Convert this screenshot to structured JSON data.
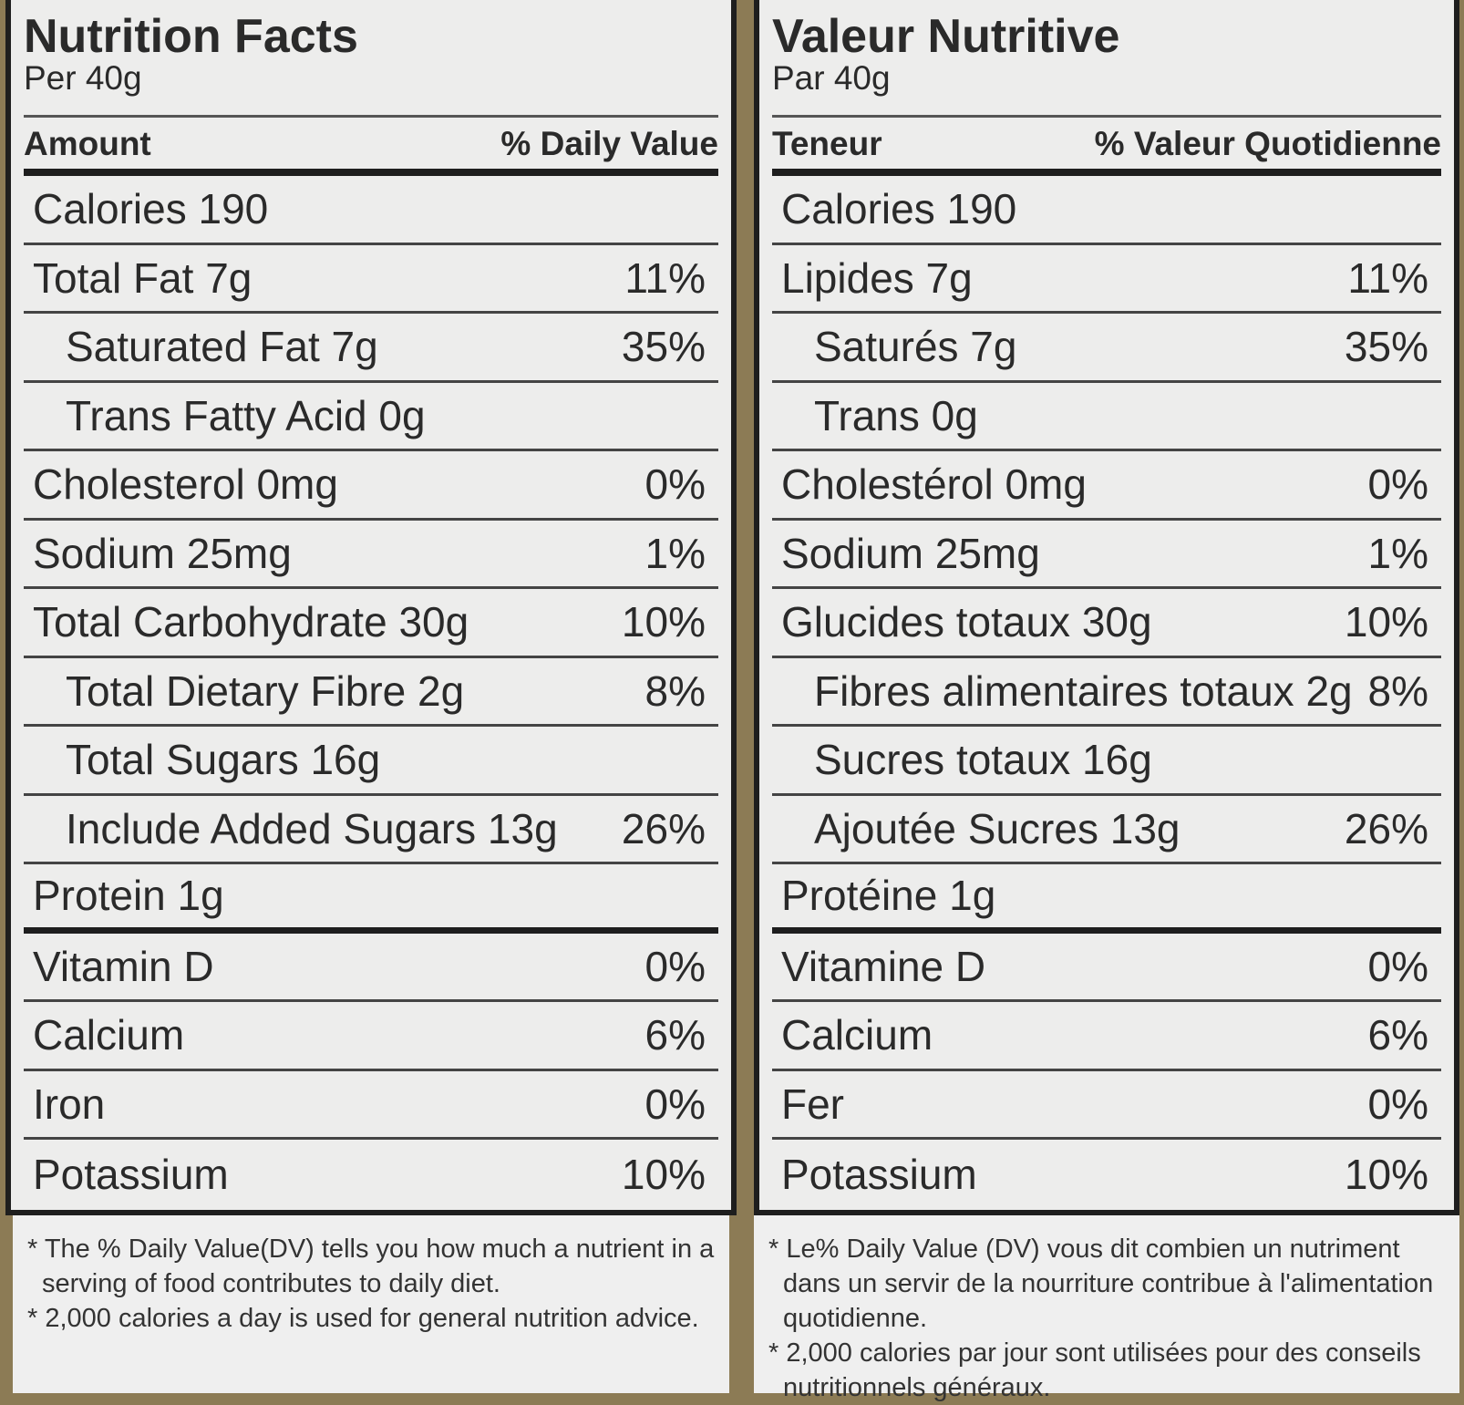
{
  "panels": [
    {
      "title": "Nutrition Facts",
      "serving": "Per 40g",
      "amount_header": "Amount",
      "dv_header": "% Daily Value",
      "rows": [
        {
          "name": "Calories 190",
          "dv": null
        },
        {
          "name": "Total Fat 7g",
          "dv": "11%"
        },
        {
          "name": "Saturated Fat 7g",
          "dv": "35%",
          "indented": true
        },
        {
          "name": "Trans Fatty Acid 0g",
          "dv": null,
          "indented": true
        },
        {
          "name": "Cholesterol 0mg",
          "dv": "0%"
        },
        {
          "name": "Sodium 25mg",
          "dv": "1%"
        },
        {
          "name": "Total Carbohydrate 30g",
          "dv": "10%"
        },
        {
          "name": "Total Dietary Fibre 2g",
          "dv": "8%",
          "indented": true
        },
        {
          "name": "Total Sugars 16g",
          "dv": null,
          "indented": true
        },
        {
          "name": "Include Added Sugars 13g",
          "dv": "26%",
          "indented": true
        },
        {
          "name": "Protein 1g",
          "dv": null,
          "thick_rule": true
        },
        {
          "name": "Vitamin D",
          "dv": "0%"
        },
        {
          "name": "Calcium",
          "dv": "6%"
        },
        {
          "name": "Iron",
          "dv": "0%"
        },
        {
          "name": "Potassium",
          "dv": "10%"
        }
      ],
      "footnotes": [
        "* The % Daily Value(DV) tells you how much a nutrient in a serving of food contributes to daily diet.",
        "* 2,000 calories a day is used for general nutrition advice."
      ]
    },
    {
      "title": "Valeur Nutritive",
      "serving": "Par 40g",
      "amount_header": "Teneur",
      "dv_header": "% Valeur Quotidienne",
      "rows": [
        {
          "name": "Calories 190",
          "dv": null
        },
        {
          "name": "Lipides 7g",
          "dv": "11%"
        },
        {
          "name": "Saturés 7g",
          "dv": "35%",
          "indented": true
        },
        {
          "name": "Trans 0g",
          "dv": null,
          "indented": true
        },
        {
          "name": "Cholestérol 0mg",
          "dv": "0%"
        },
        {
          "name": "Sodium 25mg",
          "dv": "1%"
        },
        {
          "name": "Glucides totaux 30g",
          "dv": "10%"
        },
        {
          "name": "Fibres alimentaires totaux 2g",
          "dv": "8%",
          "indented": true
        },
        {
          "name": "Sucres totaux 16g",
          "dv": null,
          "indented": true
        },
        {
          "name": "Ajoutée Sucres  13g",
          "dv": "26%",
          "indented": true
        },
        {
          "name": "Protéine 1g",
          "dv": null,
          "thick_rule": true
        },
        {
          "name": "Vitamine D",
          "dv": "0%"
        },
        {
          "name": "Calcium",
          "dv": "6%"
        },
        {
          "name": "Fer",
          "dv": "0%"
        },
        {
          "name": "Potassium",
          "dv": "10%"
        }
      ],
      "footnotes": [
        "* Le% Daily Value (DV) vous dit combien un nutriment dans un servir de la nourriture contribue à l'alimentation quotidienne.",
        "* 2,000 calories par jour sont utilisées pour des conseils nutritionnels généraux."
      ]
    }
  ]
}
